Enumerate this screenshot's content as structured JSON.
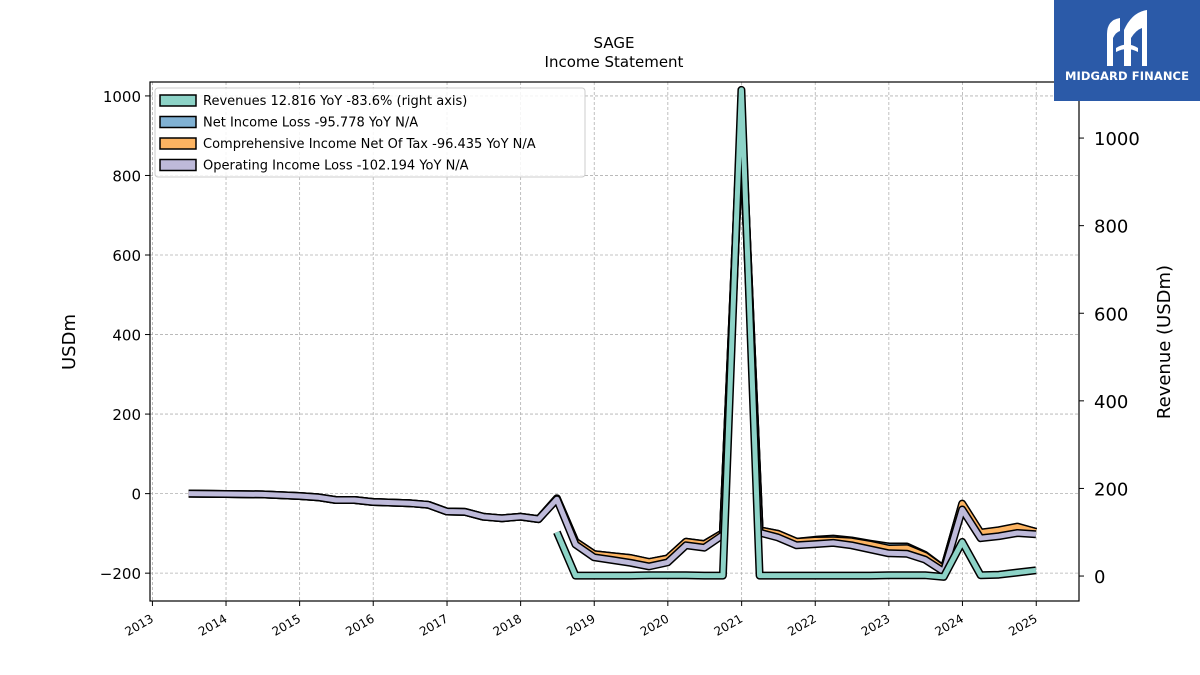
{
  "chart_data": {
    "type": "line",
    "title": "SAGE",
    "subtitle": "Income Statement",
    "ylabel": "USDm",
    "ylabel_right": "Revenue (USDm)",
    "ylim": [
      -270,
      1035
    ],
    "ylim_right": [
      -57,
      1128
    ],
    "yticks": [
      -200,
      0,
      200,
      400,
      600,
      800,
      1000
    ],
    "yticks_right": [
      0,
      200,
      400,
      600,
      800,
      1000
    ],
    "xlim": [
      "2012-12-20",
      "2025-08-01"
    ],
    "xticks": [
      "2013",
      "2014",
      "2015",
      "2016",
      "2017",
      "2018",
      "2019",
      "2020",
      "2021",
      "2022",
      "2023",
      "2024",
      "2025"
    ],
    "grid": true,
    "legend_position": "top-left",
    "series": [
      {
        "name": "Revenues  12.816 YoY -83.6% (right axis)",
        "axis": "right",
        "color": "#8dd3c7",
        "points": [
          [
            "2018-06-30",
            100
          ],
          [
            "2018-09-30",
            1
          ],
          [
            "2018-12-31",
            1
          ],
          [
            "2019-03-31",
            1
          ],
          [
            "2019-06-30",
            1
          ],
          [
            "2019-09-30",
            2
          ],
          [
            "2019-12-31",
            2
          ],
          [
            "2020-03-31",
            2
          ],
          [
            "2020-06-30",
            1
          ],
          [
            "2020-09-30",
            1
          ],
          [
            "2020-12-31",
            1110
          ],
          [
            "2021-03-31",
            1
          ],
          [
            "2021-06-30",
            1
          ],
          [
            "2021-09-30",
            1
          ],
          [
            "2021-12-31",
            1
          ],
          [
            "2022-03-31",
            1
          ],
          [
            "2022-06-30",
            1
          ],
          [
            "2022-09-30",
            1
          ],
          [
            "2022-12-31",
            2
          ],
          [
            "2023-03-31",
            2
          ],
          [
            "2023-06-30",
            2
          ],
          [
            "2023-09-30",
            -2
          ],
          [
            "2023-12-31",
            78
          ],
          [
            "2024-03-31",
            2
          ],
          [
            "2024-06-30",
            3
          ],
          [
            "2024-09-30",
            8
          ],
          [
            "2024-12-31",
            13
          ]
        ]
      },
      {
        "name": "Net Income Loss  -95.778 YoY N/A",
        "axis": "left",
        "color": "#80b1d3",
        "points": [
          [
            "2013-06-30",
            0
          ],
          [
            "2013-12-31",
            -1
          ],
          [
            "2014-06-30",
            -2
          ],
          [
            "2014-12-31",
            -6
          ],
          [
            "2015-03-31",
            -9
          ],
          [
            "2015-06-30",
            -16
          ],
          [
            "2015-09-30",
            -16
          ],
          [
            "2015-12-31",
            -21
          ],
          [
            "2016-06-30",
            -24
          ],
          [
            "2016-09-30",
            -28
          ],
          [
            "2016-12-31",
            -45
          ],
          [
            "2017-03-31",
            -46
          ],
          [
            "2017-06-30",
            -58
          ],
          [
            "2017-09-30",
            -62
          ],
          [
            "2017-12-31",
            -58
          ],
          [
            "2018-03-31",
            -64
          ],
          [
            "2018-06-30",
            -12
          ],
          [
            "2018-09-30",
            -121
          ],
          [
            "2018-12-31",
            -152
          ],
          [
            "2019-03-31",
            -157
          ],
          [
            "2019-06-30",
            -162
          ],
          [
            "2019-09-30",
            -172
          ],
          [
            "2019-12-31",
            -163
          ],
          [
            "2020-03-31",
            -121
          ],
          [
            "2020-06-30",
            -127
          ],
          [
            "2020-09-30",
            -99
          ],
          [
            "2020-12-31",
            970
          ],
          [
            "2021-03-31",
            -92
          ],
          [
            "2021-06-30",
            -101
          ],
          [
            "2021-09-30",
            -121
          ],
          [
            "2021-12-31",
            -116
          ],
          [
            "2022-03-31",
            -113
          ],
          [
            "2022-06-30",
            -118
          ],
          [
            "2022-09-30",
            -126
          ],
          [
            "2022-12-31",
            -133
          ],
          [
            "2023-03-31",
            -133
          ],
          [
            "2023-06-30",
            -154
          ],
          [
            "2023-09-30",
            -189
          ],
          [
            "2023-12-31",
            -27
          ],
          [
            "2024-03-31",
            -100
          ],
          [
            "2024-06-30",
            -94
          ],
          [
            "2024-09-30",
            -85
          ],
          [
            "2024-12-31",
            -96
          ]
        ]
      },
      {
        "name": "Comprehensive Income Net Of Tax  -96.435 YoY N/A",
        "axis": "left",
        "color": "#fdb462",
        "points": [
          [
            "2013-06-30",
            0
          ],
          [
            "2013-12-31",
            -1
          ],
          [
            "2014-06-30",
            -2
          ],
          [
            "2014-12-31",
            -6
          ],
          [
            "2015-03-31",
            -9
          ],
          [
            "2015-06-30",
            -16
          ],
          [
            "2015-09-30",
            -16
          ],
          [
            "2015-12-31",
            -21
          ],
          [
            "2016-06-30",
            -24
          ],
          [
            "2016-09-30",
            -28
          ],
          [
            "2016-12-31",
            -45
          ],
          [
            "2017-03-31",
            -46
          ],
          [
            "2017-06-30",
            -58
          ],
          [
            "2017-09-30",
            -62
          ],
          [
            "2017-12-31",
            -58
          ],
          [
            "2018-03-31",
            -64
          ],
          [
            "2018-06-30",
            -12
          ],
          [
            "2018-09-30",
            -121
          ],
          [
            "2018-12-31",
            -152
          ],
          [
            "2019-03-31",
            -157
          ],
          [
            "2019-06-30",
            -162
          ],
          [
            "2019-09-30",
            -172
          ],
          [
            "2019-12-31",
            -163
          ],
          [
            "2020-03-31",
            -121
          ],
          [
            "2020-06-30",
            -127
          ],
          [
            "2020-09-30",
            -99
          ],
          [
            "2020-12-31",
            970
          ],
          [
            "2021-03-31",
            -92
          ],
          [
            "2021-06-30",
            -101
          ],
          [
            "2021-09-30",
            -121
          ],
          [
            "2021-12-31",
            -118
          ],
          [
            "2022-03-31",
            -117
          ],
          [
            "2022-06-30",
            -120
          ],
          [
            "2022-09-30",
            -128
          ],
          [
            "2022-12-31",
            -138
          ],
          [
            "2023-03-31",
            -137
          ],
          [
            "2023-06-30",
            -156
          ],
          [
            "2023-09-30",
            -190
          ],
          [
            "2023-12-31",
            -25
          ],
          [
            "2024-03-31",
            -98
          ],
          [
            "2024-06-30",
            -92
          ],
          [
            "2024-09-30",
            -83
          ],
          [
            "2024-12-31",
            -96
          ]
        ]
      },
      {
        "name": "Operating Income Loss  -102.194 YoY N/A",
        "axis": "left",
        "color": "#bebada",
        "points": [
          [
            "2013-06-30",
            0
          ],
          [
            "2013-12-31",
            -1
          ],
          [
            "2014-06-30",
            -2
          ],
          [
            "2014-12-31",
            -6
          ],
          [
            "2015-03-31",
            -9
          ],
          [
            "2015-06-30",
            -16
          ],
          [
            "2015-09-30",
            -16
          ],
          [
            "2015-12-31",
            -21
          ],
          [
            "2016-06-30",
            -24
          ],
          [
            "2016-09-30",
            -28
          ],
          [
            "2016-12-31",
            -45
          ],
          [
            "2017-03-31",
            -46
          ],
          [
            "2017-06-30",
            -58
          ],
          [
            "2017-09-30",
            -62
          ],
          [
            "2017-12-31",
            -58
          ],
          [
            "2018-03-31",
            -64
          ],
          [
            "2018-06-30",
            -14
          ],
          [
            "2018-09-30",
            -128
          ],
          [
            "2018-12-31",
            -160
          ],
          [
            "2019-03-31",
            -167
          ],
          [
            "2019-06-30",
            -174
          ],
          [
            "2019-09-30",
            -183
          ],
          [
            "2019-12-31",
            -173
          ],
          [
            "2020-03-31",
            -130
          ],
          [
            "2020-06-30",
            -136
          ],
          [
            "2020-09-30",
            -104
          ],
          [
            "2020-12-31",
            965
          ],
          [
            "2021-03-31",
            -98
          ],
          [
            "2021-06-30",
            -110
          ],
          [
            "2021-09-30",
            -130
          ],
          [
            "2021-12-31",
            -127
          ],
          [
            "2022-03-31",
            -124
          ],
          [
            "2022-06-30",
            -130
          ],
          [
            "2022-09-30",
            -140
          ],
          [
            "2022-12-31",
            -150
          ],
          [
            "2023-03-31",
            -151
          ],
          [
            "2023-06-30",
            -166
          ],
          [
            "2023-09-30",
            -196
          ],
          [
            "2023-12-31",
            -40
          ],
          [
            "2024-03-31",
            -112
          ],
          [
            "2024-06-30",
            -107
          ],
          [
            "2024-09-30",
            -99
          ],
          [
            "2024-12-31",
            -102
          ]
        ]
      }
    ]
  },
  "logo": {
    "text": "MIDGARD FINANCE",
    "background": "#2b5aa8"
  }
}
